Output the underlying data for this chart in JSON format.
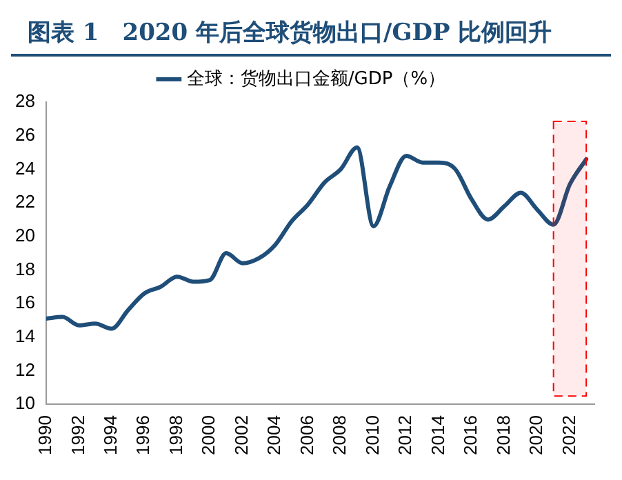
{
  "chart_data": {
    "type": "line",
    "title": "图表 1　2020 年后全球货物出口/GDP 比例回升",
    "x": [
      1990,
      1991,
      1992,
      1993,
      1994,
      1995,
      1996,
      1997,
      1998,
      1999,
      2000,
      2001,
      2002,
      2003,
      2004,
      2005,
      2006,
      2007,
      2008,
      2009,
      2010,
      2011,
      2012,
      2013,
      2014,
      2015,
      2016,
      2017,
      2018,
      2019,
      2020,
      2021,
      2022,
      2023
    ],
    "series": [
      {
        "name": "全球：货物出口金额/GDP（%）",
        "color": "#1f4e79",
        "values": [
          15.1,
          15.2,
          14.7,
          14.8,
          14.5,
          15.6,
          16.6,
          17.0,
          17.6,
          17.3,
          17.4,
          19.0,
          18.4,
          18.7,
          19.5,
          20.9,
          21.9,
          23.2,
          24.0,
          25.3,
          20.6,
          23.0,
          24.8,
          24.4,
          24.4,
          24.0,
          22.2,
          21.0,
          21.8,
          22.6,
          21.6,
          20.7,
          23.1,
          24.6
        ]
      }
    ],
    "xlim": [
      1990,
      2023.5
    ],
    "xticks": [
      1990,
      1992,
      1994,
      1996,
      1998,
      2000,
      2002,
      2004,
      2006,
      2008,
      2010,
      2012,
      2014,
      2016,
      2018,
      2020,
      2022
    ],
    "ylim": [
      10,
      28
    ],
    "yticks": [
      10,
      12,
      14,
      16,
      18,
      20,
      22,
      24,
      26,
      28
    ],
    "grid": false,
    "legend": "top",
    "marker": "none",
    "line_style": "solid",
    "bands": [
      {
        "axis": "x",
        "from": 2021,
        "to": 2023,
        "color": "#ff0000"
      }
    ]
  }
}
